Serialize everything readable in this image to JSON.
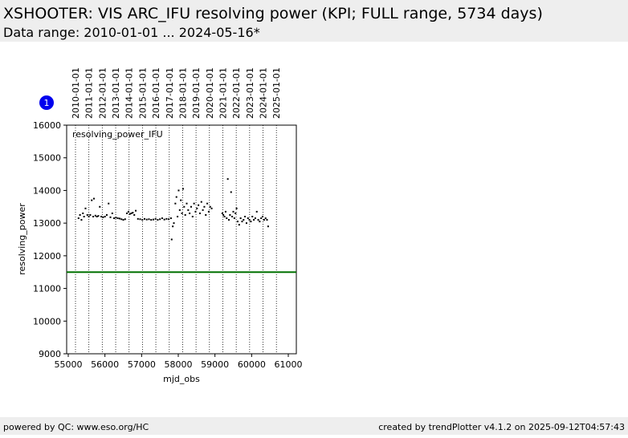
{
  "header": {
    "title": "XSHOOTER: VIS ARC_IFU resolving power (KPI; FULL range, 5734 days)",
    "subtitle": "Data range: 2010-01-01 ... 2024-05-16*"
  },
  "footer": {
    "left": "powered by QC: www.eso.org/HC",
    "right": "created by trendPlotter v4.1.2 on 2025-09-12T04:57:43"
  },
  "badge": "1",
  "chart_data": {
    "type": "scatter",
    "x_label": "mjd_obs",
    "y_label": "resolving_power",
    "annotation": "resolving_power_IFU",
    "color": "#000000",
    "xlim": [
      54956,
      61219
    ],
    "ylim": [
      9000,
      16000
    ],
    "xticks": [
      55000,
      56000,
      57000,
      58000,
      59000,
      60000,
      61000
    ],
    "yticks": [
      9000,
      10000,
      11000,
      12000,
      13000,
      14000,
      15000,
      16000
    ],
    "top_ticks": [
      {
        "value": 55197,
        "label": "2010-01-01"
      },
      {
        "value": 55562,
        "label": "2011-01-01"
      },
      {
        "value": 55927,
        "label": "2012-01-01"
      },
      {
        "value": 56293,
        "label": "2013-01-01"
      },
      {
        "value": 56658,
        "label": "2014-01-01"
      },
      {
        "value": 57023,
        "label": "2015-01-01"
      },
      {
        "value": 57388,
        "label": "2016-01-01"
      },
      {
        "value": 57754,
        "label": "2017-01-01"
      },
      {
        "value": 58119,
        "label": "2018-01-01"
      },
      {
        "value": 58484,
        "label": "2019-01-01"
      },
      {
        "value": 58849,
        "label": "2020-01-01"
      },
      {
        "value": 59215,
        "label": "2021-01-01"
      },
      {
        "value": 59580,
        "label": "2022-01-01"
      },
      {
        "value": 59945,
        "label": "2023-01-01"
      },
      {
        "value": 60310,
        "label": "2024-01-01"
      },
      {
        "value": 60676,
        "label": "2025-01-01"
      }
    ],
    "reference_line": {
      "value": 11500,
      "color": "#007000"
    },
    "x": [
      55280,
      55320,
      55360,
      55400,
      55430,
      55470,
      55520,
      55560,
      55600,
      55640,
      55680,
      55700,
      55740,
      55780,
      55820,
      55860,
      55900,
      55950,
      56000,
      56050,
      56100,
      56150,
      56200,
      56250,
      56300,
      56350,
      56400,
      56450,
      56500,
      56550,
      56600,
      56640,
      56680,
      56720,
      56760,
      56800,
      56840,
      56900,
      56960,
      57020,
      57080,
      57140,
      57200,
      57260,
      57320,
      57380,
      57440,
      57500,
      57560,
      57620,
      57680,
      57740,
      57800,
      57820,
      57850,
      57880,
      57920,
      57950,
      57980,
      58010,
      58040,
      58070,
      58100,
      58130,
      58160,
      58190,
      58230,
      58270,
      58310,
      58350,
      58390,
      58430,
      58470,
      58510,
      58550,
      58590,
      58630,
      58670,
      58710,
      58750,
      58790,
      58830,
      58870,
      58910,
      59200,
      59230,
      59260,
      59290,
      59320,
      59350,
      59380,
      59410,
      59440,
      59470,
      59500,
      59530,
      59560,
      59590,
      59620,
      59660,
      59700,
      59740,
      59780,
      59820,
      59860,
      59900,
      59940,
      59980,
      60020,
      60060,
      60100,
      60140,
      60180,
      60220,
      60260,
      60300,
      60340,
      60380,
      60420,
      60450
    ],
    "values": [
      13150,
      13250,
      13100,
      13300,
      13200,
      13450,
      13250,
      13200,
      13250,
      13700,
      13200,
      13750,
      13230,
      13200,
      13220,
      13500,
      13200,
      13180,
      13200,
      13250,
      13600,
      13180,
      13300,
      13150,
      13170,
      13150,
      13140,
      13120,
      13100,
      13120,
      13300,
      13350,
      13280,
      13300,
      13320,
      13250,
      13380,
      13130,
      13120,
      13100,
      13130,
      13110,
      13120,
      13100,
      13110,
      13130,
      13100,
      13120,
      13150,
      13110,
      13130,
      13120,
      13150,
      12500,
      12900,
      13000,
      13600,
      13800,
      13200,
      14000,
      13400,
      13700,
      13300,
      14050,
      13500,
      13250,
      13600,
      13400,
      13300,
      13500,
      13200,
      13600,
      13350,
      13450,
      13550,
      13300,
      13650,
      13400,
      13500,
      13250,
      13600,
      13350,
      13500,
      13450,
      13300,
      13250,
      13200,
      13350,
      13150,
      14350,
      13100,
      13250,
      13950,
      13200,
      13350,
      13150,
      13300,
      13450,
      13050,
      12950,
      13150,
      13050,
      13100,
      13200,
      13000,
      13150,
      13100,
      13050,
      13200,
      13100,
      13150,
      13350,
      13100,
      13050,
      13150,
      13200,
      13100,
      13150,
      13100,
      12900
    ]
  }
}
